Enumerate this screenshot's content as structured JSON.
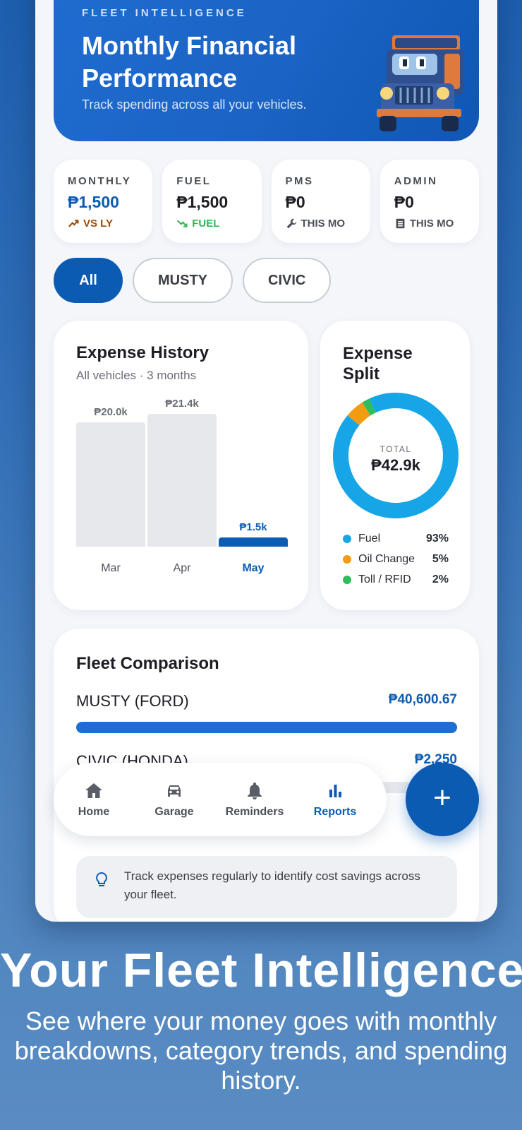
{
  "hero": {
    "eyebrow": "FLEET INTELLIGENCE",
    "title": "Monthly Financial Performance",
    "subtitle": "Track spending across all your vehicles."
  },
  "stats": [
    {
      "label": "MONTHLY",
      "value": "₱1,500",
      "sub": "VS LY",
      "icon": "trend-up-icon"
    },
    {
      "label": "FUEL",
      "value": "₱1,500",
      "sub": "FUEL",
      "icon": "trend-down-icon"
    },
    {
      "label": "PMS",
      "value": "₱0",
      "sub": "THIS MO",
      "icon": "wrench-icon"
    },
    {
      "label": "ADMIN",
      "value": "₱0",
      "sub": "THIS MO",
      "icon": "receipt-icon"
    }
  ],
  "filters": [
    "All",
    "MUSTY",
    "CIVIC"
  ],
  "history": {
    "title": "Expense History",
    "subtitle": "All vehicles · 3 months"
  },
  "chart_data": [
    {
      "type": "bar",
      "categories": [
        "Mar",
        "Apr",
        "May"
      ],
      "values": [
        20.0,
        21.4,
        1.5
      ],
      "value_labels": [
        "₱20.0k",
        "₱21.4k",
        "₱1.5k"
      ],
      "highlighted": "May",
      "ylim": [
        0,
        21.4
      ]
    },
    {
      "type": "pie",
      "title": "Expense Split",
      "center_label": "TOTAL",
      "center_value": "₱42.9k",
      "slices": [
        {
          "name": "Fuel",
          "value": 93,
          "label": "93%",
          "color": "#16a6e8"
        },
        {
          "name": "Oil Change",
          "value": 5,
          "label": "5%",
          "color": "#f39c12"
        },
        {
          "name": "Toll / RFID",
          "value": 2,
          "label": "2%",
          "color": "#2ebd5a"
        }
      ]
    }
  ],
  "fleet": {
    "title": "Fleet Comparison",
    "rows": [
      {
        "name": "MUSTY (FORD)",
        "amount": "₱40,600.67",
        "value": 40600.67,
        "share": 1.0
      },
      {
        "name": "CIVIC (HONDA)",
        "amount": "₱2,250",
        "value": 2250,
        "share": 0.055
      }
    ],
    "tip": "Track expenses regularly to identify cost savings across your fleet."
  },
  "nav": [
    {
      "label": "Home",
      "icon": "home-icon"
    },
    {
      "label": "Garage",
      "icon": "car-icon"
    },
    {
      "label": "Reminders",
      "icon": "bell-icon"
    },
    {
      "label": "Reports",
      "icon": "bar-chart-icon",
      "active": true
    }
  ],
  "fab": "+",
  "promo": {
    "title": "Your Fleet Intelligence",
    "subtitle": "See where your money goes with monthly breakdowns, category trends, and spending history."
  },
  "colors": {
    "primary": "#0b5bb3",
    "fuel": "#16a6e8",
    "oil": "#f39c12",
    "toll": "#2ebd5a"
  }
}
